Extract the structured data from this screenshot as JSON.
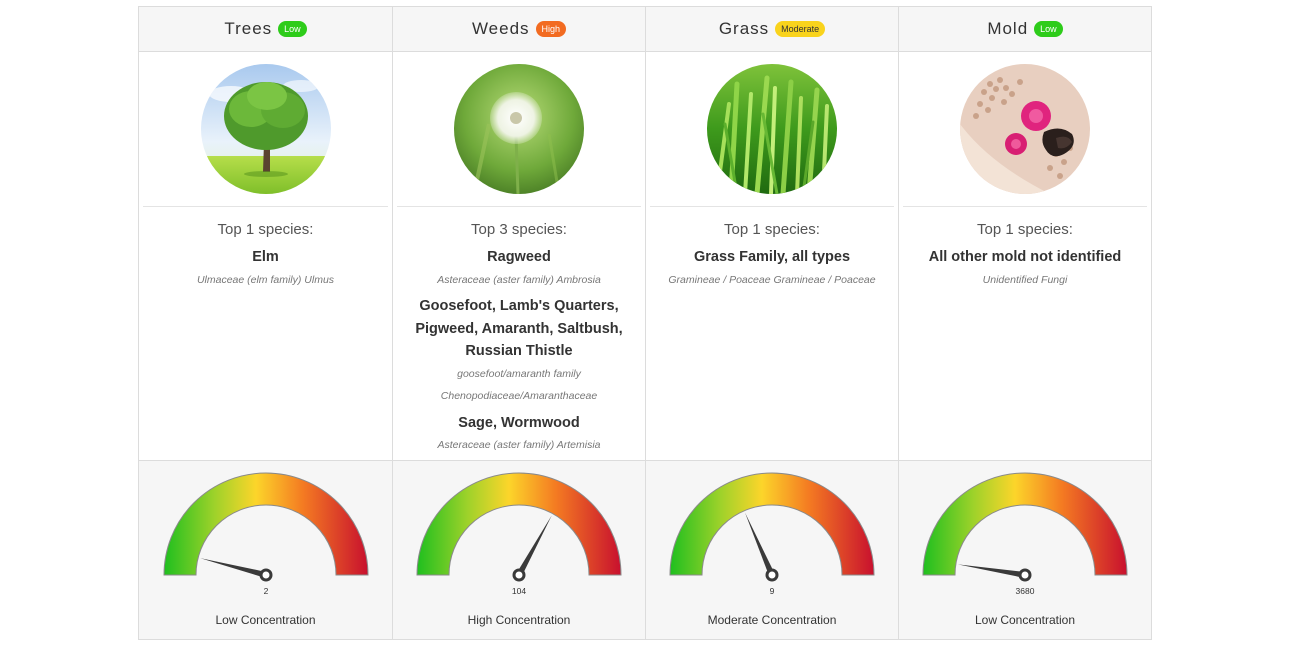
{
  "categories": [
    {
      "title": "Trees",
      "level": "Low",
      "level_color": "#2ecc1a",
      "image": "tree-photo",
      "species_label": "Top 1 species:",
      "species": [
        {
          "common": "Elm",
          "scientific": "Ulmaceae (elm family) Ulmus"
        }
      ],
      "gauge_value": "2",
      "gauge_fraction": 0.08,
      "concentration": "Low Concentration"
    },
    {
      "title": "Weeds",
      "level": "High",
      "level_color": "#f26b21",
      "image": "dandelion-photo",
      "species_label": "Top 3 species:",
      "species": [
        {
          "common": "Ragweed",
          "scientific": "Asteraceae (aster family) Ambrosia"
        },
        {
          "common": "Goosefoot, Lamb's Quarters, Pigweed, Amaranth, Saltbush, Russian Thistle",
          "scientific": "goosefoot/amaranth family Chenopodiaceae/Amaranthaceae"
        },
        {
          "common": "Sage, Wormwood",
          "scientific": "Asteraceae (aster family) Artemisia"
        }
      ],
      "gauge_value": "104",
      "gauge_fraction": 0.66,
      "concentration": "High Concentration"
    },
    {
      "title": "Grass",
      "level": "Moderate",
      "level_color": "#f9d31c",
      "image": "grass-photo",
      "species_label": "Top 1 species:",
      "species": [
        {
          "common": "Grass Family, all types",
          "scientific": "Gramineae / Poaceae Gramineae / Poaceae"
        }
      ],
      "gauge_value": "9",
      "gauge_fraction": 0.37,
      "concentration": "Moderate Concentration"
    },
    {
      "title": "Mold",
      "level": "Low",
      "level_color": "#2ecc1a",
      "image": "mold-photo",
      "species_label": "Top 1 species:",
      "species": [
        {
          "common": "All other mold not identified",
          "scientific": "Unidentified Fungi"
        }
      ],
      "gauge_value": "3680",
      "gauge_fraction": 0.05,
      "concentration": "Low Concentration"
    }
  ]
}
